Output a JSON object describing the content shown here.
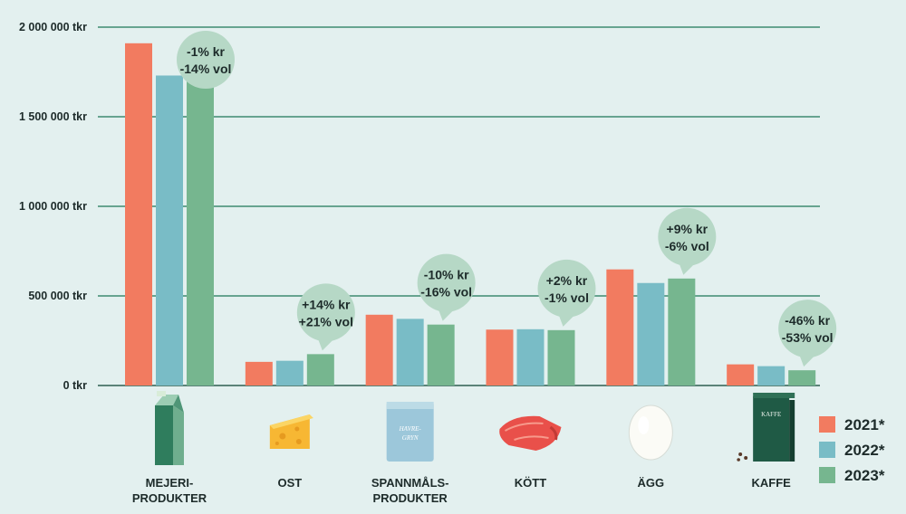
{
  "chart_data": {
    "type": "bar",
    "categories": [
      "MEJERI-\nPRODUKTER",
      "OST",
      "SPANNMÅLS-\nPRODUKTER",
      "KÖTT",
      "ÄGG",
      "KAFFE"
    ],
    "series": [
      {
        "name": "2021*",
        "color": "#f27b60",
        "values": [
          1910000,
          132000,
          395000,
          312000,
          648000,
          118000
        ]
      },
      {
        "name": "2022*",
        "color": "#79bcc6",
        "values": [
          1730000,
          138000,
          372000,
          314000,
          572000,
          108000
        ]
      },
      {
        "name": "2023*",
        "color": "#76b68f",
        "values": [
          1755000,
          175000,
          340000,
          309000,
          597000,
          85000
        ]
      }
    ],
    "y_ticks": [
      {
        "value": 0,
        "label": "0 tkr"
      },
      {
        "value": 500000,
        "label": "500 000 tkr"
      },
      {
        "value": 1000000,
        "label": "1 000 000 tkr"
      },
      {
        "value": 1500000,
        "label": "1 500 000 tkr"
      },
      {
        "value": 2000000,
        "label": "2 000 000 tkr"
      }
    ],
    "ylim": [
      0,
      2000000
    ],
    "grid": true,
    "legend_position": "bottom-right",
    "annotations": [
      {
        "category": "MEJERI-\nPRODUKTER",
        "lines": [
          "-1% kr",
          "-14% vol"
        ]
      },
      {
        "category": "OST",
        "lines": [
          "+14% kr",
          "+21% vol"
        ]
      },
      {
        "category": "SPANNMÅLS-\nPRODUKTER",
        "lines": [
          "-10% kr",
          "-16% vol"
        ]
      },
      {
        "category": "KÖTT",
        "lines": [
          "+2% kr",
          "-1% vol"
        ]
      },
      {
        "category": "ÄGG",
        "lines": [
          "+9% kr",
          "-6% vol"
        ]
      },
      {
        "category": "KAFFE",
        "lines": [
          "-46% kr",
          "-53% vol"
        ]
      }
    ],
    "bubble_color": "#b6d8c6",
    "icons": [
      "milk-carton-icon",
      "cheese-icon",
      "oat-bag-icon",
      "meat-icon",
      "egg-icon",
      "coffee-bag-icon"
    ],
    "icon_labels": {
      "oat_bag": "HAVRE-\nGRYN",
      "coffee_bag": "KAFFE"
    }
  }
}
